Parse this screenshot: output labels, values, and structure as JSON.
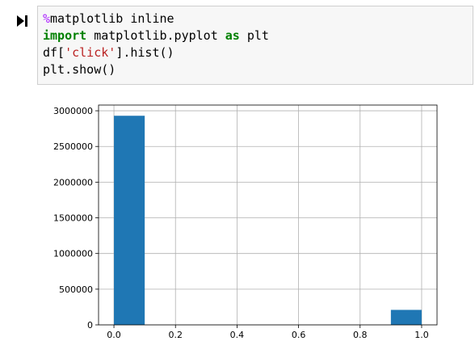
{
  "cell": {
    "run_icon": "run-cell-icon",
    "code": {
      "line1": {
        "magic": "%",
        "rest": "matplotlib inline"
      },
      "line2": {
        "kw1": "import",
        "mid": " matplotlib.pyplot ",
        "kw2": "as",
        "end": " plt"
      },
      "line3": {
        "pre": "df[",
        "str": "'click'",
        "post": "].hist()"
      },
      "line4": "plt.show()"
    }
  },
  "chart_data": {
    "type": "bar",
    "title": "",
    "xlabel": "",
    "ylabel": "",
    "grid": true,
    "bar_color": "#1f77b4",
    "xlim": [
      -0.05,
      1.05
    ],
    "ylim": [
      0,
      3080000
    ],
    "bins": [
      {
        "x_start": 0.0,
        "x_end": 0.1,
        "value": 2930000
      },
      {
        "x_start": 0.1,
        "x_end": 0.2,
        "value": 0
      },
      {
        "x_start": 0.2,
        "x_end": 0.3,
        "value": 0
      },
      {
        "x_start": 0.3,
        "x_end": 0.4,
        "value": 0
      },
      {
        "x_start": 0.4,
        "x_end": 0.5,
        "value": 0
      },
      {
        "x_start": 0.5,
        "x_end": 0.6,
        "value": 0
      },
      {
        "x_start": 0.6,
        "x_end": 0.7,
        "value": 0
      },
      {
        "x_start": 0.7,
        "x_end": 0.8,
        "value": 0
      },
      {
        "x_start": 0.8,
        "x_end": 0.9,
        "value": 0
      },
      {
        "x_start": 0.9,
        "x_end": 1.0,
        "value": 210000
      }
    ],
    "x_ticks": [
      {
        "value": 0.0,
        "label": "0.0"
      },
      {
        "value": 0.2,
        "label": "0.2"
      },
      {
        "value": 0.4,
        "label": "0.4"
      },
      {
        "value": 0.6,
        "label": "0.6"
      },
      {
        "value": 0.8,
        "label": "0.8"
      },
      {
        "value": 1.0,
        "label": "1.0"
      }
    ],
    "y_ticks": [
      {
        "value": 0,
        "label": "0"
      },
      {
        "value": 500000,
        "label": "500000"
      },
      {
        "value": 1000000,
        "label": "1000000"
      },
      {
        "value": 1500000,
        "label": "1500000"
      },
      {
        "value": 2000000,
        "label": "2000000"
      },
      {
        "value": 2500000,
        "label": "2500000"
      },
      {
        "value": 3000000,
        "label": "3000000"
      }
    ]
  }
}
